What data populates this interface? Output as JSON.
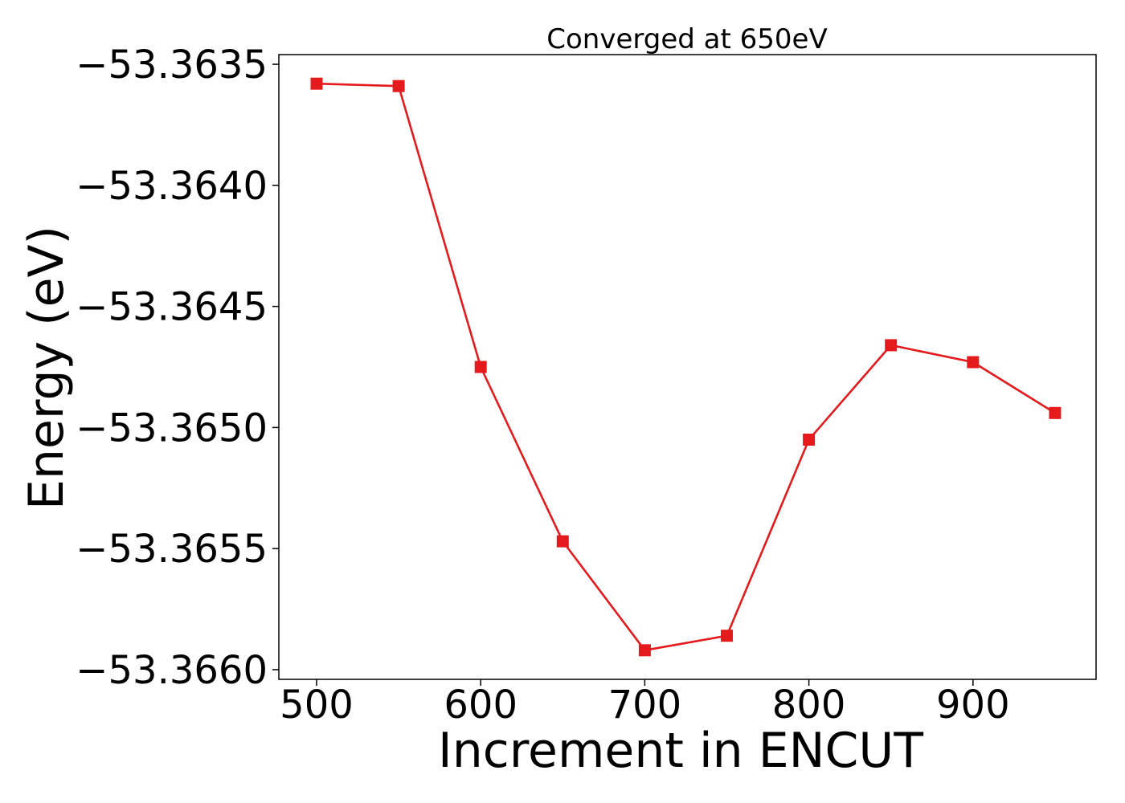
{
  "chart_data": {
    "type": "line",
    "title": "Converged at 650eV",
    "xlabel": "Increment in ENCUT",
    "ylabel": "Energy (eV)",
    "x": [
      500,
      550,
      600,
      650,
      700,
      750,
      800,
      850,
      900,
      950
    ],
    "series": [
      {
        "values": [
          -53.36358,
          -53.36359,
          -53.36475,
          -53.36547,
          -53.36592,
          -53.36586,
          -53.36505,
          -53.36466,
          -53.36473,
          -53.36494
        ],
        "color": "#e41a1c",
        "marker": "square"
      }
    ],
    "xlim": [
      477,
      975
    ],
    "ylim": [
      -53.36604,
      -53.36346
    ],
    "xticks": [
      500,
      600,
      700,
      800,
      900
    ],
    "xtick_labels": [
      "500",
      "600",
      "700",
      "800",
      "900"
    ],
    "yticks": [
      -53.3635,
      -53.364,
      -53.3645,
      -53.365,
      -53.3655,
      -53.366
    ],
    "ytick_labels": [
      "−53.3635",
      "−53.3640",
      "−53.3645",
      "−53.3650",
      "−53.3655",
      "−53.3660"
    ],
    "grid": false,
    "legend": null
  }
}
